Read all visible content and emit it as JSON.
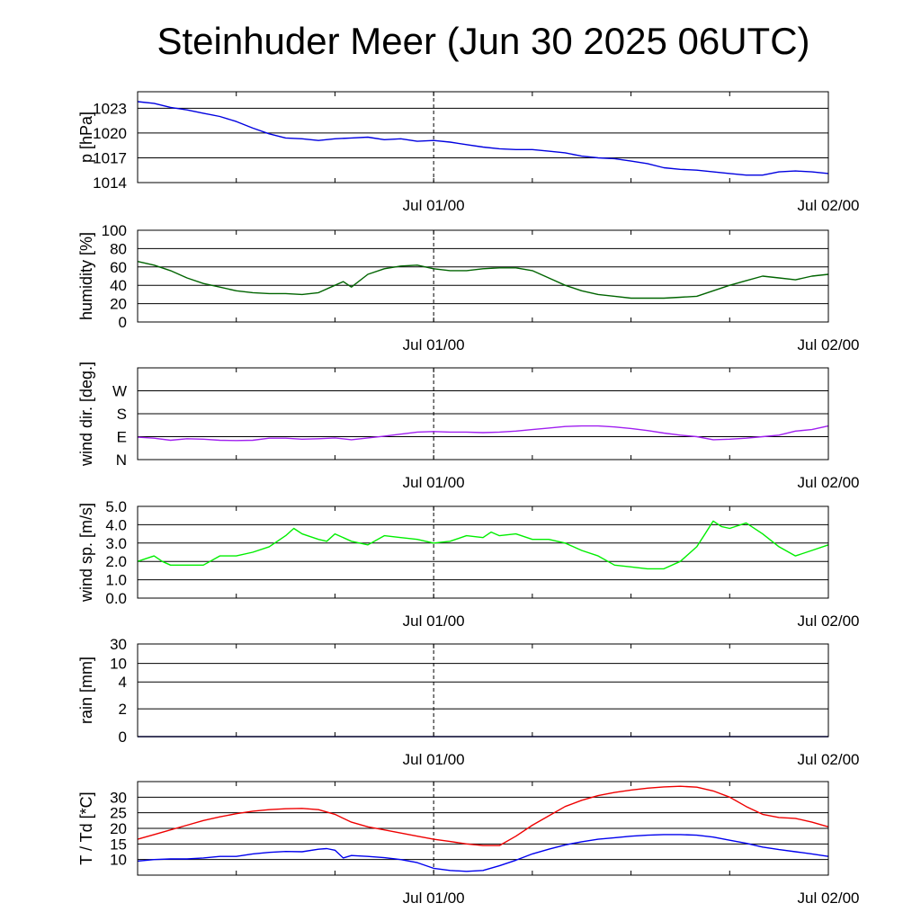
{
  "title": "Steinhuder Meer (Jun 30 2025 06UTC)",
  "chart_data": [
    {
      "type": "line",
      "id": "pressure",
      "ylabel": "p [hPa]",
      "x_unit": "hours since Jun 30 2025 06UTC",
      "xlim": [
        0,
        42
      ],
      "xticks": [
        {
          "x": 18,
          "label": "Jul 01/00"
        },
        {
          "x": 42,
          "label": "Jul 02/00"
        }
      ],
      "ylim": [
        1014,
        1025
      ],
      "yticks": [
        {
          "v": 1014,
          "label": "1014"
        },
        {
          "v": 1017,
          "label": "1017"
        },
        {
          "v": 1020,
          "label": "1020"
        },
        {
          "v": 1023,
          "label": "1023"
        }
      ],
      "grid": true,
      "series": [
        {
          "color": "#0000e0",
          "x": [
            0,
            1,
            2,
            3,
            4,
            5,
            6,
            7,
            8,
            9,
            10,
            11,
            12,
            13,
            14,
            15,
            16,
            17,
            18,
            19,
            20,
            21,
            22,
            23,
            24,
            25,
            26,
            27,
            28,
            29,
            30,
            31,
            32,
            33,
            34,
            35,
            36,
            37,
            38,
            39,
            40,
            41,
            42
          ],
          "y": [
            1023.8,
            1023.6,
            1023.1,
            1022.8,
            1022.4,
            1022.0,
            1021.4,
            1020.6,
            1019.9,
            1019.4,
            1019.3,
            1019.1,
            1019.3,
            1019.4,
            1019.5,
            1019.2,
            1019.3,
            1019.0,
            1019.1,
            1018.9,
            1018.6,
            1018.3,
            1018.1,
            1018.0,
            1018.0,
            1017.8,
            1017.6,
            1017.2,
            1017.0,
            1016.9,
            1016.6,
            1016.3,
            1015.8,
            1015.6,
            1015.5,
            1015.3,
            1015.1,
            1014.9,
            1014.9,
            1015.3,
            1015.4,
            1015.3,
            1015.1
          ]
        }
      ]
    },
    {
      "type": "line",
      "id": "humidity",
      "ylabel": "humidity [%]",
      "x_unit": "hours since Jun 30 2025 06UTC",
      "xlim": [
        0,
        42
      ],
      "xticks": [
        {
          "x": 18,
          "label": "Jul 01/00"
        },
        {
          "x": 42,
          "label": "Jul 02/00"
        }
      ],
      "ylim": [
        0,
        100
      ],
      "yticks": [
        {
          "v": 0,
          "label": "0"
        },
        {
          "v": 20,
          "label": "20"
        },
        {
          "v": 40,
          "label": "40"
        },
        {
          "v": 60,
          "label": "60"
        },
        {
          "v": 80,
          "label": "80"
        },
        {
          "v": 100,
          "label": "100"
        }
      ],
      "grid": true,
      "series": [
        {
          "color": "#006400",
          "x": [
            0,
            1,
            2,
            3,
            4,
            5,
            6,
            7,
            8,
            9,
            10,
            11,
            12,
            12.5,
            13,
            14,
            15,
            16,
            17,
            18,
            19,
            20,
            21,
            22,
            23,
            24,
            25,
            26,
            27,
            28,
            29,
            30,
            31,
            32,
            33,
            34,
            35,
            36,
            37,
            38,
            39,
            40,
            41,
            42
          ],
          "y": [
            66,
            62,
            56,
            48,
            42,
            38,
            34,
            32,
            31,
            31,
            30,
            32,
            40,
            44,
            38,
            52,
            58,
            61,
            62,
            58,
            56,
            56,
            58,
            59,
            59,
            56,
            48,
            40,
            34,
            30,
            28,
            26,
            26,
            26,
            27,
            28,
            34,
            40,
            45,
            50,
            48,
            46,
            50,
            52
          ]
        }
      ]
    },
    {
      "type": "line",
      "id": "wind-direction",
      "ylabel": "wind dir. [deg.]",
      "x_unit": "hours since Jun 30 2025 06UTC",
      "xlim": [
        0,
        42
      ],
      "xticks": [
        {
          "x": 18,
          "label": "Jul 01/00"
        },
        {
          "x": 42,
          "label": "Jul 02/00"
        }
      ],
      "ylim": [
        0,
        360
      ],
      "yticks": [
        {
          "v": 0,
          "label": "N"
        },
        {
          "v": 90,
          "label": "E"
        },
        {
          "v": 180,
          "label": "S"
        },
        {
          "v": 270,
          "label": "W"
        }
      ],
      "grid": true,
      "series": [
        {
          "color": "#a020f0",
          "x": [
            0,
            1,
            2,
            3,
            4,
            5,
            6,
            7,
            8,
            9,
            10,
            11,
            12,
            13,
            14,
            15,
            16,
            17,
            18,
            19,
            20,
            21,
            22,
            23,
            24,
            25,
            26,
            27,
            28,
            29,
            30,
            31,
            32,
            33,
            34,
            35,
            36,
            37,
            38,
            39,
            40,
            41,
            42
          ],
          "y": [
            88,
            84,
            76,
            82,
            80,
            76,
            75,
            76,
            84,
            84,
            80,
            82,
            85,
            78,
            85,
            92,
            100,
            108,
            110,
            108,
            108,
            106,
            108,
            112,
            118,
            124,
            130,
            132,
            132,
            128,
            122,
            114,
            104,
            96,
            90,
            78,
            80,
            84,
            90,
            96,
            112,
            118,
            132
          ]
        }
      ]
    },
    {
      "type": "line",
      "id": "wind-speed",
      "ylabel": "wind sp. [m/s]",
      "x_unit": "hours since Jun 30 2025 06UTC",
      "xlim": [
        0,
        42
      ],
      "xticks": [
        {
          "x": 18,
          "label": "Jul 01/00"
        },
        {
          "x": 42,
          "label": "Jul 02/00"
        }
      ],
      "ylim": [
        0,
        5
      ],
      "yticks": [
        {
          "v": 0,
          "label": "0.0"
        },
        {
          "v": 1,
          "label": "1.0"
        },
        {
          "v": 2,
          "label": "2.0"
        },
        {
          "v": 3,
          "label": "3.0"
        },
        {
          "v": 4,
          "label": "4.0"
        },
        {
          "v": 5,
          "label": "5.0"
        }
      ],
      "grid": true,
      "series": [
        {
          "color": "#00ee00",
          "x": [
            0,
            1,
            1.5,
            2,
            3,
            4,
            5,
            6,
            7,
            8,
            9,
            9.5,
            10,
            11,
            11.5,
            12,
            13,
            14,
            15,
            16,
            17,
            18,
            19,
            20,
            21,
            21.5,
            22,
            23,
            24,
            25,
            26,
            27,
            28,
            29,
            30,
            31,
            32,
            33,
            34,
            34.5,
            35,
            35.5,
            36,
            37,
            38,
            39,
            40,
            41,
            42
          ],
          "y": [
            2.0,
            2.3,
            2.0,
            1.8,
            1.8,
            1.8,
            2.3,
            2.3,
            2.5,
            2.8,
            3.4,
            3.8,
            3.5,
            3.2,
            3.1,
            3.5,
            3.1,
            2.9,
            3.4,
            3.3,
            3.2,
            3.0,
            3.1,
            3.4,
            3.3,
            3.6,
            3.4,
            3.5,
            3.2,
            3.2,
            3.0,
            2.6,
            2.3,
            1.8,
            1.7,
            1.6,
            1.6,
            2.0,
            2.8,
            3.5,
            4.2,
            3.9,
            3.8,
            4.1,
            3.5,
            2.8,
            2.3,
            2.6,
            2.9
          ]
        }
      ]
    },
    {
      "type": "line",
      "id": "rain",
      "ylabel": "rain [mm]",
      "x_unit": "hours since Jun 30 2025 06UTC",
      "xlim": [
        0,
        42
      ],
      "xticks": [
        {
          "x": 18,
          "label": "Jul 01/00"
        },
        {
          "x": 42,
          "label": "Jul 02/00"
        }
      ],
      "ylim": [
        0,
        30
      ],
      "yscale": "nonlinear",
      "yticks": [
        {
          "v": 0,
          "label": "0"
        },
        {
          "v": 2,
          "label": "2"
        },
        {
          "v": 4,
          "label": "4"
        },
        {
          "v": 10,
          "label": "10"
        },
        {
          "v": 30,
          "label": "30"
        }
      ],
      "grid": true,
      "series": [
        {
          "color": "#000080",
          "x": [
            0,
            42
          ],
          "y": [
            0,
            0
          ]
        }
      ]
    },
    {
      "type": "line",
      "id": "temperature-dewpoint",
      "ylabel": "T / Td [*C]",
      "x_unit": "hours since Jun 30 2025 06UTC",
      "xlim": [
        0,
        42
      ],
      "xticks": [
        {
          "x": 18,
          "label": "Jul 01/00"
        },
        {
          "x": 42,
          "label": "Jul 02/00"
        }
      ],
      "ylim": [
        5,
        35
      ],
      "yticks": [
        {
          "v": 10,
          "label": "10"
        },
        {
          "v": 15,
          "label": "15"
        },
        {
          "v": 20,
          "label": "20"
        },
        {
          "v": 25,
          "label": "25"
        },
        {
          "v": 30,
          "label": "30"
        }
      ],
      "grid": true,
      "series": [
        {
          "color": "#ee0000",
          "x": [
            0,
            1,
            2,
            3,
            4,
            5,
            6,
            7,
            8,
            9,
            10,
            11,
            12,
            13,
            14,
            15,
            16,
            17,
            18,
            19,
            20,
            21,
            22,
            23,
            24,
            25,
            26,
            27,
            28,
            29,
            30,
            31,
            32,
            33,
            34,
            35,
            36,
            37,
            38,
            39,
            40,
            41,
            42
          ],
          "y": [
            16.5,
            18.0,
            19.5,
            21.0,
            22.5,
            23.7,
            24.7,
            25.5,
            26.0,
            26.3,
            26.4,
            26.0,
            24.5,
            22.0,
            20.5,
            19.5,
            18.5,
            17.5,
            16.5,
            15.8,
            15.0,
            14.5,
            14.5,
            17.5,
            21.0,
            24.0,
            27.0,
            29.0,
            30.5,
            31.5,
            32.3,
            32.9,
            33.3,
            33.5,
            33.2,
            32.0,
            30.0,
            27.0,
            24.5,
            23.5,
            23.2,
            22.0,
            20.5
          ]
        },
        {
          "color": "#0000ee",
          "x": [
            0,
            1,
            2,
            3,
            4,
            5,
            6,
            7,
            8,
            9,
            10,
            11,
            11.5,
            12,
            12.5,
            13,
            14,
            15,
            16,
            17,
            18,
            19,
            20,
            21,
            22,
            23,
            24,
            25,
            26,
            27,
            28,
            29,
            30,
            31,
            32,
            33,
            34,
            35,
            36,
            37,
            38,
            39,
            40,
            41,
            42
          ],
          "y": [
            9.5,
            10.0,
            10.2,
            10.2,
            10.5,
            11.0,
            11.0,
            11.8,
            12.3,
            12.6,
            12.5,
            13.3,
            13.5,
            13.0,
            10.5,
            11.3,
            11.0,
            10.6,
            10.0,
            9.0,
            7.2,
            6.5,
            6.2,
            6.5,
            8.0,
            9.8,
            11.8,
            13.3,
            14.7,
            15.7,
            16.5,
            17.0,
            17.5,
            17.8,
            18.0,
            18.0,
            17.8,
            17.2,
            16.2,
            15.2,
            14.0,
            13.2,
            12.5,
            11.8,
            11.0
          ]
        }
      ]
    }
  ]
}
